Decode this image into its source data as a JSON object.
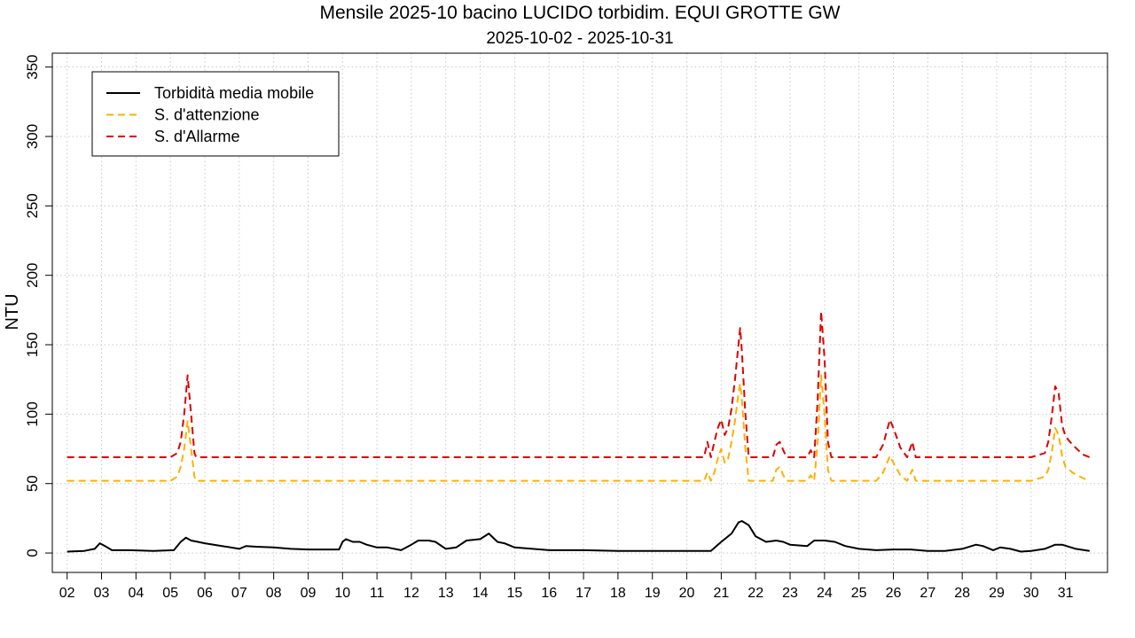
{
  "chart_data": {
    "type": "line",
    "title": "Mensile 2025-10 bacino LUCIDO torbidim. EQUI GROTTE GW",
    "subtitle": "2025-10-02 - 2025-10-31",
    "ylabel": "NTU",
    "ylim": [
      -14,
      360
    ],
    "xlim": [
      1.57,
      32.22
    ],
    "yticks": [
      0,
      50,
      100,
      150,
      200,
      250,
      300,
      350
    ],
    "xticks": [
      2,
      3,
      4,
      5,
      6,
      7,
      8,
      9,
      10,
      11,
      12,
      13,
      14,
      15,
      16,
      17,
      18,
      19,
      20,
      21,
      22,
      23,
      24,
      25,
      26,
      27,
      28,
      29,
      30,
      31
    ],
    "xticklabels": [
      "02",
      "03",
      "04",
      "05",
      "06",
      "07",
      "08",
      "09",
      "10",
      "11",
      "12",
      "13",
      "14",
      "15",
      "16",
      "17",
      "18",
      "19",
      "20",
      "21",
      "22",
      "23",
      "24",
      "25",
      "26",
      "27",
      "28",
      "29",
      "30",
      "31"
    ],
    "grid": true,
    "legend_position": "top-left",
    "series": [
      {
        "name": "Torbidità media mobile",
        "color": "#000000",
        "dash": "solid",
        "points": [
          [
            2.0,
            1
          ],
          [
            2.5,
            1.5
          ],
          [
            2.8,
            3
          ],
          [
            2.95,
            7
          ],
          [
            3.1,
            5
          ],
          [
            3.3,
            2
          ],
          [
            3.8,
            2
          ],
          [
            4.5,
            1.5
          ],
          [
            5.1,
            2
          ],
          [
            5.3,
            8
          ],
          [
            5.45,
            11
          ],
          [
            5.6,
            9
          ],
          [
            5.8,
            8
          ],
          [
            6.0,
            7
          ],
          [
            6.5,
            5
          ],
          [
            7.0,
            3
          ],
          [
            7.2,
            5
          ],
          [
            7.5,
            4.5
          ],
          [
            8.0,
            4
          ],
          [
            8.5,
            3
          ],
          [
            9.0,
            2.5
          ],
          [
            9.5,
            2.5
          ],
          [
            9.9,
            2.5
          ],
          [
            10.0,
            8
          ],
          [
            10.1,
            10
          ],
          [
            10.3,
            8
          ],
          [
            10.5,
            8
          ],
          [
            10.7,
            6
          ],
          [
            11.0,
            4
          ],
          [
            11.3,
            4
          ],
          [
            11.7,
            2
          ],
          [
            12.0,
            6
          ],
          [
            12.2,
            9
          ],
          [
            12.5,
            9
          ],
          [
            12.7,
            8
          ],
          [
            13.0,
            3
          ],
          [
            13.3,
            4
          ],
          [
            13.6,
            9
          ],
          [
            14.0,
            10
          ],
          [
            14.25,
            14
          ],
          [
            14.5,
            8
          ],
          [
            14.7,
            7
          ],
          [
            15.0,
            4
          ],
          [
            16.0,
            2
          ],
          [
            17.0,
            2
          ],
          [
            18.0,
            1.5
          ],
          [
            19.0,
            1.5
          ],
          [
            20.0,
            1.5
          ],
          [
            20.7,
            1.5
          ],
          [
            21.0,
            8
          ],
          [
            21.3,
            14
          ],
          [
            21.5,
            22
          ],
          [
            21.6,
            23
          ],
          [
            21.8,
            20
          ],
          [
            22.0,
            12
          ],
          [
            22.3,
            8
          ],
          [
            22.6,
            9
          ],
          [
            22.8,
            8
          ],
          [
            23.0,
            6
          ],
          [
            23.5,
            5
          ],
          [
            23.7,
            9
          ],
          [
            24.0,
            9
          ],
          [
            24.3,
            8
          ],
          [
            24.6,
            5
          ],
          [
            25.0,
            3
          ],
          [
            25.5,
            2
          ],
          [
            26.0,
            2.5
          ],
          [
            26.5,
            2.5
          ],
          [
            27.0,
            1.5
          ],
          [
            27.5,
            1.5
          ],
          [
            28.0,
            3
          ],
          [
            28.4,
            6
          ],
          [
            28.6,
            5
          ],
          [
            28.9,
            2
          ],
          [
            29.1,
            4
          ],
          [
            29.4,
            3
          ],
          [
            29.7,
            1
          ],
          [
            30.0,
            1.5
          ],
          [
            30.4,
            3
          ],
          [
            30.7,
            6
          ],
          [
            30.9,
            6
          ],
          [
            31.3,
            3
          ],
          [
            31.7,
            1.5
          ]
        ]
      },
      {
        "name": "S. d'attenzione",
        "color": "#FFB000",
        "dash": "dashed",
        "points": [
          [
            2.0,
            52
          ],
          [
            5.0,
            52
          ],
          [
            5.2,
            55
          ],
          [
            5.3,
            62
          ],
          [
            5.4,
            75
          ],
          [
            5.5,
            95
          ],
          [
            5.6,
            75
          ],
          [
            5.7,
            55
          ],
          [
            5.75,
            52
          ],
          [
            20.5,
            52
          ],
          [
            20.6,
            58
          ],
          [
            20.7,
            52
          ],
          [
            20.8,
            58
          ],
          [
            20.9,
            68
          ],
          [
            21.0,
            75
          ],
          [
            21.1,
            65
          ],
          [
            21.2,
            68
          ],
          [
            21.3,
            80
          ],
          [
            21.4,
            95
          ],
          [
            21.5,
            115
          ],
          [
            21.55,
            122
          ],
          [
            21.6,
            110
          ],
          [
            21.7,
            75
          ],
          [
            21.8,
            52
          ],
          [
            22.5,
            52
          ],
          [
            22.6,
            60
          ],
          [
            22.7,
            62
          ],
          [
            22.8,
            56
          ],
          [
            22.9,
            52
          ],
          [
            23.5,
            52
          ],
          [
            23.6,
            56
          ],
          [
            23.7,
            52
          ],
          [
            23.8,
            80
          ],
          [
            23.9,
            128
          ],
          [
            24.0,
            100
          ],
          [
            24.1,
            60
          ],
          [
            24.2,
            52
          ],
          [
            25.3,
            52
          ],
          [
            25.5,
            52
          ],
          [
            25.7,
            58
          ],
          [
            25.9,
            70
          ],
          [
            26.0,
            65
          ],
          [
            26.2,
            56
          ],
          [
            26.4,
            52
          ],
          [
            26.55,
            60
          ],
          [
            26.65,
            52
          ],
          [
            30.0,
            52
          ],
          [
            30.4,
            55
          ],
          [
            30.5,
            60
          ],
          [
            30.6,
            72
          ],
          [
            30.7,
            90
          ],
          [
            30.8,
            85
          ],
          [
            30.9,
            70
          ],
          [
            31.0,
            62
          ],
          [
            31.2,
            58
          ],
          [
            31.5,
            54
          ],
          [
            31.7,
            52
          ]
        ]
      },
      {
        "name": "S. d'Allarme",
        "color": "#DD0000",
        "dash": "dashed",
        "points": [
          [
            2.0,
            69
          ],
          [
            5.0,
            69
          ],
          [
            5.2,
            72
          ],
          [
            5.3,
            80
          ],
          [
            5.4,
            100
          ],
          [
            5.5,
            128
          ],
          [
            5.6,
            100
          ],
          [
            5.7,
            72
          ],
          [
            5.75,
            69
          ],
          [
            20.5,
            69
          ],
          [
            20.6,
            80
          ],
          [
            20.7,
            69
          ],
          [
            20.8,
            80
          ],
          [
            20.9,
            90
          ],
          [
            21.0,
            96
          ],
          [
            21.1,
            85
          ],
          [
            21.2,
            90
          ],
          [
            21.3,
            104
          ],
          [
            21.4,
            125
          ],
          [
            21.5,
            150
          ],
          [
            21.55,
            162
          ],
          [
            21.6,
            145
          ],
          [
            21.7,
            100
          ],
          [
            21.8,
            69
          ],
          [
            22.5,
            69
          ],
          [
            22.6,
            78
          ],
          [
            22.7,
            80
          ],
          [
            22.8,
            74
          ],
          [
            22.9,
            69
          ],
          [
            23.5,
            69
          ],
          [
            23.6,
            74
          ],
          [
            23.7,
            69
          ],
          [
            23.8,
            110
          ],
          [
            23.9,
            174
          ],
          [
            24.0,
            140
          ],
          [
            24.1,
            80
          ],
          [
            24.2,
            69
          ],
          [
            25.3,
            69
          ],
          [
            25.5,
            69
          ],
          [
            25.7,
            78
          ],
          [
            25.9,
            96
          ],
          [
            26.0,
            90
          ],
          [
            26.2,
            76
          ],
          [
            26.4,
            69
          ],
          [
            26.55,
            80
          ],
          [
            26.65,
            69
          ],
          [
            30.0,
            69
          ],
          [
            30.4,
            72
          ],
          [
            30.5,
            80
          ],
          [
            30.6,
            98
          ],
          [
            30.7,
            120
          ],
          [
            30.8,
            115
          ],
          [
            30.9,
            92
          ],
          [
            31.0,
            84
          ],
          [
            31.2,
            78
          ],
          [
            31.5,
            71
          ],
          [
            31.7,
            69
          ]
        ]
      }
    ]
  }
}
